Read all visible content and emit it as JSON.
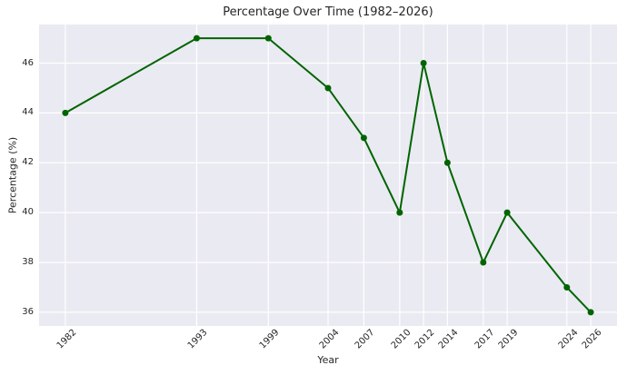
{
  "chart_data": {
    "type": "line",
    "title": "Percentage Over Time (1982–2026)",
    "xlabel": "Year",
    "ylabel": "Percentage (%)",
    "x": [
      1982,
      1993,
      1999,
      2004,
      2007,
      2010,
      2012,
      2014,
      2017,
      2019,
      2024,
      2026
    ],
    "y": [
      44,
      47,
      47,
      45,
      43,
      40,
      46,
      42,
      38,
      40,
      37,
      36
    ],
    "xtick_labels": [
      "1982",
      "1993",
      "1999",
      "2004",
      "2007",
      "2010",
      "2012",
      "2014",
      "2017",
      "2019",
      "2024",
      "2026"
    ],
    "ytick_values": [
      36,
      38,
      40,
      42,
      44,
      46
    ],
    "xlim": [
      1979.8,
      2028.2
    ],
    "ylim": [
      35.45,
      47.55
    ],
    "x_tick_rotation_deg": 45,
    "grid": true,
    "legend": false,
    "line_color": "#006400",
    "marker": "circle",
    "marker_color": "#006400",
    "plot_background_color": "#eaeaf2",
    "grid_color": "#ffffff",
    "text_color": "#262626",
    "figure_background_color": "#ffffff"
  }
}
